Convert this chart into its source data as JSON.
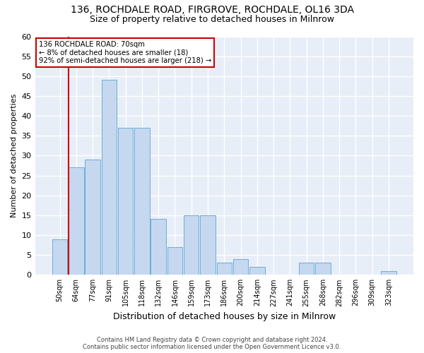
{
  "title1": "136, ROCHDALE ROAD, FIRGROVE, ROCHDALE, OL16 3DA",
  "title2": "Size of property relative to detached houses in Milnrow",
  "xlabel": "Distribution of detached houses by size in Milnrow",
  "ylabel": "Number of detached properties",
  "categories": [
    "50sqm",
    "64sqm",
    "77sqm",
    "91sqm",
    "105sqm",
    "118sqm",
    "132sqm",
    "146sqm",
    "159sqm",
    "173sqm",
    "186sqm",
    "200sqm",
    "214sqm",
    "227sqm",
    "241sqm",
    "255sqm",
    "268sqm",
    "282sqm",
    "296sqm",
    "309sqm",
    "323sqm"
  ],
  "values": [
    9,
    27,
    29,
    49,
    37,
    37,
    14,
    7,
    15,
    15,
    3,
    4,
    2,
    0,
    0,
    3,
    3,
    0,
    0,
    0,
    1
  ],
  "bar_color": "#c5d8ef",
  "bar_edge_color": "#6baed6",
  "annotation_text_line1": "136 ROCHDALE ROAD: 70sqm",
  "annotation_text_line2": "← 8% of detached houses are smaller (18)",
  "annotation_text_line3": "92% of semi-detached houses are larger (218) →",
  "red_line_color": "#cc0000",
  "annotation_box_edge": "#cc0000",
  "footer1": "Contains HM Land Registry data © Crown copyright and database right 2024.",
  "footer2": "Contains public sector information licensed under the Open Government Licence v3.0.",
  "ylim": [
    0,
    60
  ],
  "yticks": [
    0,
    5,
    10,
    15,
    20,
    25,
    30,
    35,
    40,
    45,
    50,
    55,
    60
  ],
  "background_color": "#e8eef7",
  "grid_color": "#ffffff",
  "title1_fontsize": 10,
  "title2_fontsize": 9,
  "xlabel_fontsize": 9,
  "ylabel_fontsize": 8,
  "red_line_bar_index": 1
}
